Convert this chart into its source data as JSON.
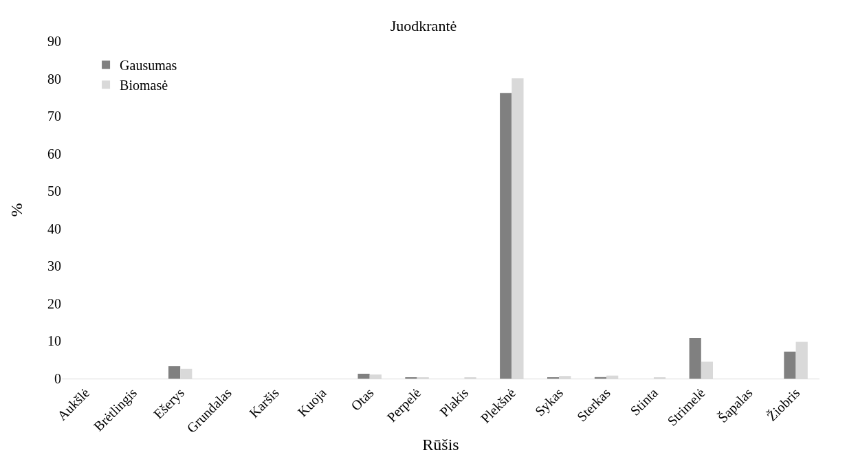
{
  "chart_data": {
    "type": "bar",
    "title": "Juodkrantė",
    "xlabel": "Rūšis",
    "ylabel": "%",
    "categories": [
      "Aukšlė",
      "Brėtlingis",
      "Ešerys",
      "Grundalas",
      "Karšis",
      "Kuoja",
      "Otas",
      "Perpelė",
      "Plakis",
      "Plekšnė",
      "Sykas",
      "Sterkas",
      "Stinta",
      "Strimelė",
      "Šapalas",
      "Žiobris"
    ],
    "series": [
      {
        "name": "Gausumas",
        "color": "#808080",
        "values": [
          0,
          0,
          3.3,
          0,
          0,
          0,
          1.3,
          0.3,
          0,
          76.2,
          0.2,
          0.4,
          0,
          10.8,
          0,
          7.2
        ]
      },
      {
        "name": "Biomasė",
        "color": "#d9d9d9",
        "values": [
          0,
          0,
          2.6,
          0,
          0,
          0,
          1.1,
          0.3,
          0.3,
          80.1,
          0.7,
          0.8,
          0.3,
          4.5,
          0,
          9.8
        ]
      }
    ],
    "ylim": [
      0,
      90
    ],
    "yticks": [
      0,
      10,
      20,
      30,
      40,
      50,
      60,
      70,
      80,
      90
    ],
    "legend": "top left"
  }
}
